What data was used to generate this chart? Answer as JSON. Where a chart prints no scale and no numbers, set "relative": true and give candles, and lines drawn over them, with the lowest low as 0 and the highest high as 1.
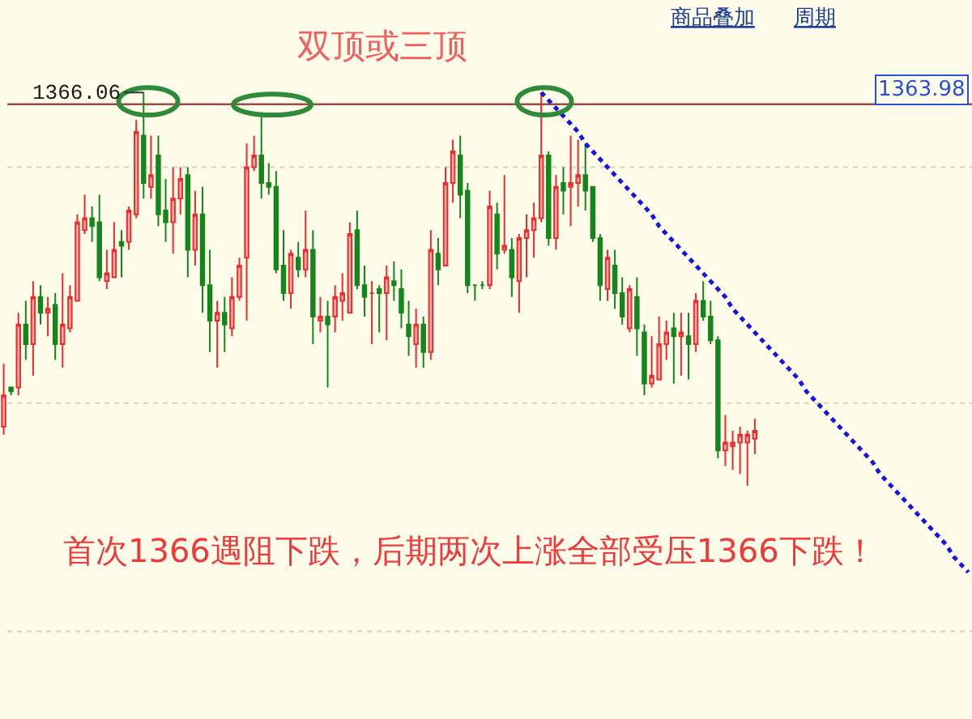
{
  "chart_data": {
    "type": "candlestick",
    "title": "双顶或三顶",
    "relative": true,
    "annotations": [
      "1366.06",
      "1363.98",
      "首次1366遇阻下跌，后期两次上涨全部受压1366下跌！",
      "商品叠加",
      "周期"
    ],
    "ref_lines": [
      {
        "axis": "y",
        "value": 0.97,
        "color": "#9c4a4a",
        "line_style": "solid"
      },
      {
        "axis": "y",
        "value": 0.81,
        "color": "#d9d9c6",
        "line_style": "dotted"
      },
      {
        "axis": "y",
        "value": 0.21,
        "color": "#d9d9c6",
        "line_style": "dotted"
      },
      {
        "axis": "y",
        "value": -0.37,
        "color": "#d9d9c6",
        "line_style": "dotted"
      }
    ],
    "categories": [
      null,
      null,
      null,
      null,
      null,
      null,
      null,
      null,
      null,
      null,
      null,
      null,
      null,
      null,
      null,
      null,
      null,
      null,
      null,
      null,
      null,
      null,
      null,
      null,
      null,
      null,
      null,
      null,
      null,
      null,
      null,
      null,
      null,
      null,
      null,
      null,
      null,
      null,
      null,
      null,
      null,
      null,
      null,
      null,
      null,
      null,
      null,
      null,
      null,
      null,
      null,
      null,
      null,
      null,
      null,
      null,
      null,
      null,
      null,
      null,
      null,
      null,
      null,
      null,
      null,
      null,
      null,
      null,
      null,
      null,
      null,
      null,
      null,
      null,
      null,
      null,
      null,
      null,
      null,
      null,
      null,
      null,
      null,
      null,
      null,
      null,
      null,
      null,
      null,
      null,
      null,
      null,
      null,
      null,
      null,
      null,
      null,
      null,
      null,
      null,
      null,
      null,
      null,
      null,
      null,
      null,
      null,
      null,
      null,
      null,
      null,
      null,
      null,
      null,
      null,
      null,
      null,
      null,
      null,
      null,
      null,
      null,
      null,
      null,
      null,
      null,
      null,
      null,
      null,
      null,
      null,
      null
    ],
    "ohlc": [
      [
        0.15,
        0.31,
        0.13,
        0.23
      ],
      [
        0.25,
        0.25,
        0.23,
        0.24
      ],
      [
        0.25,
        0.44,
        0.23,
        0.41
      ],
      [
        0.41,
        0.47,
        0.32,
        0.36
      ],
      [
        0.36,
        0.52,
        0.28,
        0.48
      ],
      [
        0.48,
        0.51,
        0.41,
        0.44
      ],
      [
        0.44,
        0.48,
        0.38,
        0.45
      ],
      [
        0.46,
        0.49,
        0.32,
        0.36
      ],
      [
        0.36,
        0.54,
        0.3,
        0.41
      ],
      [
        0.4,
        0.51,
        0.39,
        0.48
      ],
      [
        0.47,
        0.69,
        0.47,
        0.67
      ],
      [
        0.65,
        0.74,
        0.64,
        0.68
      ],
      [
        0.68,
        0.71,
        0.62,
        0.66
      ],
      [
        0.67,
        0.74,
        0.52,
        0.53
      ],
      [
        0.52,
        0.6,
        0.5,
        0.54
      ],
      [
        0.53,
        0.67,
        0.53,
        0.6
      ],
      [
        0.62,
        0.65,
        0.53,
        0.61
      ],
      [
        0.62,
        0.71,
        0.6,
        0.7
      ],
      [
        0.69,
        0.93,
        0.68,
        0.9
      ],
      [
        0.89,
        1.0,
        0.73,
        0.77
      ],
      [
        0.76,
        0.89,
        0.73,
        0.79
      ],
      [
        0.84,
        0.89,
        0.66,
        0.69
      ],
      [
        0.7,
        0.78,
        0.62,
        0.67
      ],
      [
        0.67,
        0.81,
        0.59,
        0.73
      ],
      [
        0.73,
        0.81,
        0.69,
        0.78
      ],
      [
        0.79,
        0.81,
        0.53,
        0.6
      ],
      [
        0.6,
        0.75,
        0.56,
        0.69
      ],
      [
        0.69,
        0.76,
        0.44,
        0.51
      ],
      [
        0.51,
        0.6,
        0.34,
        0.42
      ],
      [
        0.42,
        0.47,
        0.3,
        0.44
      ],
      [
        0.44,
        0.48,
        0.34,
        0.41
      ],
      [
        0.4,
        0.53,
        0.38,
        0.48
      ],
      [
        0.48,
        0.58,
        0.47,
        0.56
      ],
      [
        0.58,
        0.87,
        0.42,
        0.81
      ],
      [
        0.81,
        0.89,
        0.8,
        0.84
      ],
      [
        0.84,
        0.95,
        0.73,
        0.77
      ],
      [
        0.77,
        0.82,
        0.74,
        0.76
      ],
      [
        0.76,
        0.8,
        0.54,
        0.55
      ],
      [
        0.56,
        0.65,
        0.47,
        0.49
      ],
      [
        0.49,
        0.6,
        0.45,
        0.59
      ],
      [
        0.58,
        0.62,
        0.53,
        0.55
      ],
      [
        0.55,
        0.7,
        0.53,
        0.6
      ],
      [
        0.6,
        0.65,
        0.36,
        0.43
      ],
      [
        0.42,
        0.48,
        0.39,
        0.43
      ],
      [
        0.43,
        0.47,
        0.25,
        0.41
      ],
      [
        0.43,
        0.51,
        0.39,
        0.48
      ],
      [
        0.47,
        0.54,
        0.42,
        0.49
      ],
      [
        0.44,
        0.67,
        0.44,
        0.64
      ],
      [
        0.65,
        0.7,
        0.5,
        0.51
      ],
      [
        0.51,
        0.56,
        0.43,
        0.48
      ],
      [
        0.49,
        0.52,
        0.36,
        0.49
      ],
      [
        0.5,
        0.51,
        0.39,
        0.49
      ],
      [
        0.49,
        0.56,
        0.37,
        0.53
      ],
      [
        0.52,
        0.57,
        0.47,
        0.51
      ],
      [
        0.5,
        0.55,
        0.4,
        0.44
      ],
      [
        0.41,
        0.47,
        0.33,
        0.38
      ],
      [
        0.36,
        0.45,
        0.3,
        0.41
      ],
      [
        0.41,
        0.43,
        0.3,
        0.34
      ],
      [
        0.34,
        0.65,
        0.32,
        0.6
      ],
      [
        0.59,
        0.63,
        0.51,
        0.55
      ],
      [
        0.56,
        0.81,
        0.56,
        0.77
      ],
      [
        0.77,
        0.88,
        0.72,
        0.85
      ],
      [
        0.84,
        0.89,
        0.68,
        0.74
      ],
      [
        0.75,
        0.77,
        0.49,
        0.51
      ],
      [
        0.51,
        0.51,
        0.47,
        0.51
      ],
      [
        0.51,
        0.52,
        0.5,
        0.51
      ],
      [
        0.51,
        0.75,
        0.5,
        0.71
      ],
      [
        0.69,
        0.72,
        0.55,
        0.59
      ],
      [
        0.6,
        0.79,
        0.59,
        0.61
      ],
      [
        0.6,
        0.63,
        0.48,
        0.53
      ],
      [
        0.52,
        0.64,
        0.44,
        0.63
      ],
      [
        0.63,
        0.69,
        0.53,
        0.65
      ],
      [
        0.65,
        0.72,
        0.58,
        0.68
      ],
      [
        0.68,
        1.0,
        0.67,
        0.84
      ],
      [
        0.84,
        0.85,
        0.61,
        0.63
      ],
      [
        0.63,
        0.79,
        0.6,
        0.76
      ],
      [
        0.77,
        0.81,
        0.69,
        0.75
      ],
      [
        0.76,
        0.89,
        0.66,
        0.77
      ],
      [
        0.77,
        0.88,
        0.71,
        0.79
      ],
      [
        0.79,
        0.87,
        0.7,
        0.75
      ],
      [
        0.76,
        0.76,
        0.62,
        0.63
      ],
      [
        0.63,
        0.64,
        0.47,
        0.51
      ],
      [
        0.5,
        0.6,
        0.47,
        0.58
      ],
      [
        0.56,
        0.6,
        0.45,
        0.49
      ],
      [
        0.49,
        0.53,
        0.41,
        0.43
      ],
      [
        0.4,
        0.51,
        0.39,
        0.5
      ],
      [
        0.48,
        0.53,
        0.33,
        0.4
      ],
      [
        0.39,
        0.41,
        0.23,
        0.26
      ],
      [
        0.26,
        0.38,
        0.25,
        0.28
      ],
      [
        0.27,
        0.43,
        0.27,
        0.36
      ],
      [
        0.36,
        0.42,
        0.32,
        0.39
      ],
      [
        0.4,
        0.44,
        0.26,
        0.38
      ],
      [
        0.38,
        0.44,
        0.28,
        0.39
      ],
      [
        0.38,
        0.44,
        0.27,
        0.36
      ],
      [
        0.36,
        0.49,
        0.34,
        0.47
      ],
      [
        0.47,
        0.52,
        0.42,
        0.43
      ],
      [
        0.43,
        0.47,
        0.36,
        0.37
      ],
      [
        0.37,
        0.38,
        0.07,
        0.09
      ],
      [
        0.09,
        0.18,
        0.05,
        0.11
      ],
      [
        0.1,
        0.14,
        0.04,
        0.11
      ],
      [
        0.11,
        0.15,
        0.03,
        0.13
      ],
      [
        0.11,
        0.14,
        0.0,
        0.13
      ],
      [
        0.12,
        0.17,
        0.08,
        0.14
      ],
      null,
      null,
      null,
      null,
      null,
      null,
      null,
      null,
      null,
      null,
      null,
      null,
      null,
      null,
      null,
      null,
      null,
      null,
      null,
      null,
      null,
      null,
      null,
      null,
      null,
      null,
      null,
      null,
      null
    ],
    "series": [
      {
        "type": "line",
        "color": "#1414e6",
        "line_style": "dotted",
        "values": [
          null,
          null,
          null,
          null,
          null,
          null,
          null,
          null,
          null,
          null,
          null,
          null,
          null,
          null,
          null,
          null,
          null,
          null,
          null,
          null,
          null,
          null,
          null,
          null,
          null,
          null,
          null,
          null,
          null,
          null,
          null,
          null,
          null,
          null,
          null,
          null,
          null,
          null,
          null,
          null,
          null,
          null,
          null,
          null,
          null,
          null,
          null,
          null,
          null,
          null,
          null,
          null,
          null,
          null,
          null,
          null,
          null,
          null,
          null,
          null,
          null,
          null,
          null,
          null,
          null,
          null,
          null,
          null,
          null,
          null,
          null,
          null,
          null,
          1.0,
          0.98,
          0.96,
          0.94,
          0.92,
          0.9,
          0.87,
          0.85,
          0.83,
          0.81,
          0.79,
          0.77,
          0.75,
          0.73,
          0.71,
          0.69,
          0.66,
          0.64,
          0.62,
          0.6,
          0.58,
          0.56,
          0.54,
          0.52,
          0.5,
          0.48,
          0.45,
          0.43,
          0.41,
          0.39,
          0.37,
          0.35,
          0.33,
          0.31,
          0.29,
          0.27,
          0.24,
          0.22,
          0.2,
          0.18,
          0.16,
          0.14,
          0.12,
          0.1,
          0.08,
          0.06,
          0.03,
          0.01,
          -0.01,
          -0.03,
          -0.05,
          -0.07,
          -0.09,
          -0.11,
          -0.13,
          -0.15,
          -0.18,
          -0.2,
          -0.22
        ]
      }
    ]
  }
}
